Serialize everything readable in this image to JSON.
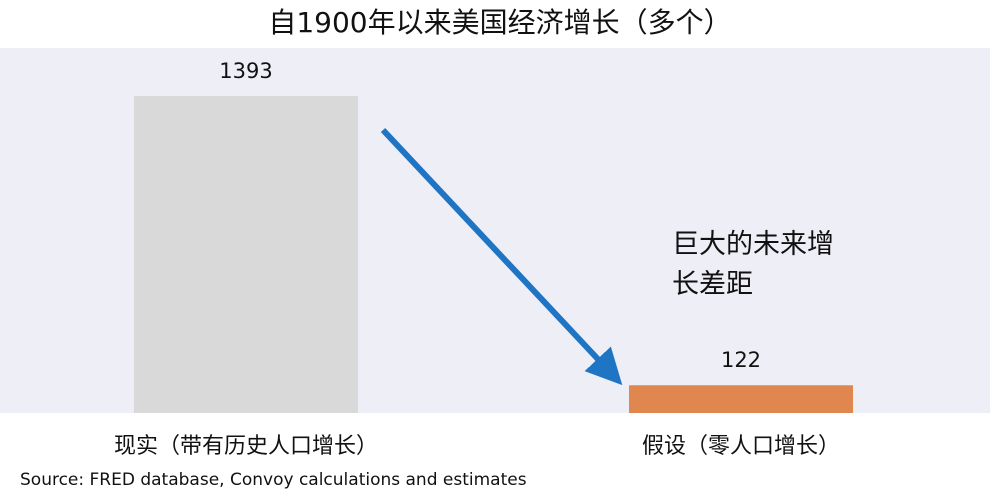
{
  "chart_data": {
    "type": "bar",
    "title": "自1900年以来美国经济增长（多个）",
    "categories": [
      "现实（带有历史人口增长）",
      "假设（零人口增长）"
    ],
    "values": [
      1393,
      122
    ],
    "colors": [
      "#d9d9d9",
      "#e0874f"
    ],
    "annotation": "巨大的未来增长差距",
    "source": "Source: FRED database, Convoy calculations and estimates"
  }
}
